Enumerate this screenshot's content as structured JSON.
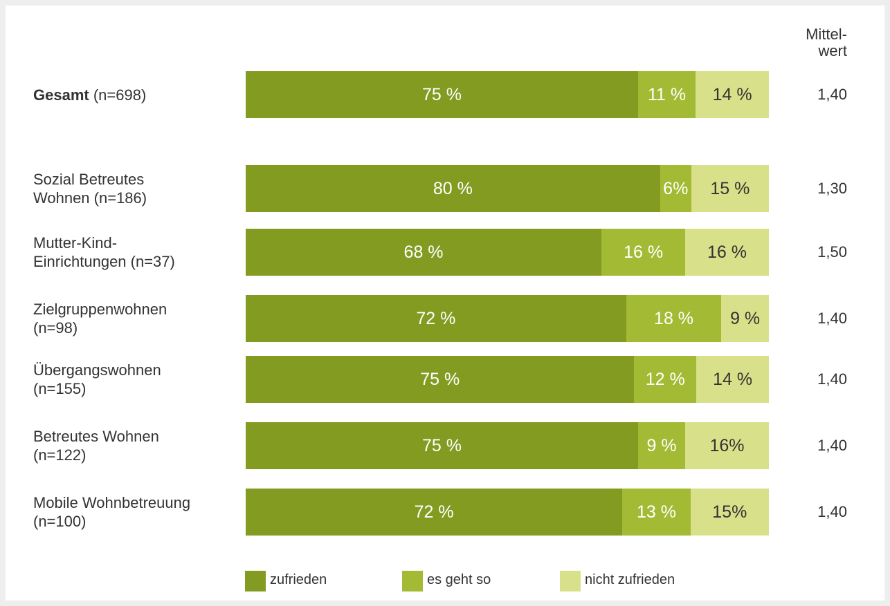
{
  "colors": {
    "zufrieden": "#849b22",
    "es_geht_so": "#a3bb34",
    "nicht_zufrieden": "#d9e08a",
    "text_dark": "#333333",
    "text_light": "#ffffff"
  },
  "mean_header": "Mittel-\nwert",
  "chart_data": {
    "type": "bar",
    "orientation": "horizontal",
    "stacked": true,
    "categories": [
      "Gesamt (n=698)",
      "Sozial Betreutes Wohnen (n=186)",
      "Mutter-Kind-Einrichtungen (n=37)",
      "Zielgruppenwohnen (n=98)",
      "Übergangswohnen (n=155)",
      "Betreutes Wohnen (n=122)",
      "Mobile Wohnbetreuung (n=100)"
    ],
    "series": [
      {
        "name": "zufrieden",
        "values": [
          75,
          80,
          68,
          72,
          75,
          75,
          72
        ],
        "labels": [
          "75 %",
          "80 %",
          "68 %",
          "72 %",
          "75 %",
          "75 %",
          "72 %"
        ]
      },
      {
        "name": "es geht so",
        "values": [
          11,
          6,
          16,
          18,
          12,
          9,
          13
        ],
        "labels": [
          "11 %",
          "6%",
          "16 %",
          "18 %",
          "12 %",
          "9 %",
          "13 %"
        ]
      },
      {
        "name": "nicht zufrieden",
        "values": [
          14,
          15,
          16,
          9,
          14,
          16,
          15
        ],
        "labels": [
          "14 %",
          "15 %",
          "16 %",
          "9 %",
          "14 %",
          "16%",
          "15%"
        ]
      }
    ],
    "means": [
      "1,40",
      "1,30",
      "1,50",
      "1,40",
      "1,40",
      "1,40",
      "1,40"
    ],
    "xlim": [
      0,
      100
    ],
    "legend_position": "bottom",
    "grid": false
  },
  "rows": [
    {
      "bold": "Gesamt",
      "label": " (n=698)"
    },
    {
      "bold": "",
      "label": "Sozial Betreutes\nWohnen (n=186)"
    },
    {
      "bold": "",
      "label": "Mutter-Kind-\nEinrichtungen (n=37)"
    },
    {
      "bold": "",
      "label": "Zielgruppenwohnen\n(n=98)"
    },
    {
      "bold": "",
      "label": "Übergangswohnen\n(n=155)"
    },
    {
      "bold": "",
      "label": "Betreutes Wohnen\n(n=122)"
    },
    {
      "bold": "",
      "label": "Mobile Wohnbetreuung\n(n=100)"
    }
  ],
  "legend": [
    "zufrieden",
    "es geht so",
    "nicht zufrieden"
  ]
}
